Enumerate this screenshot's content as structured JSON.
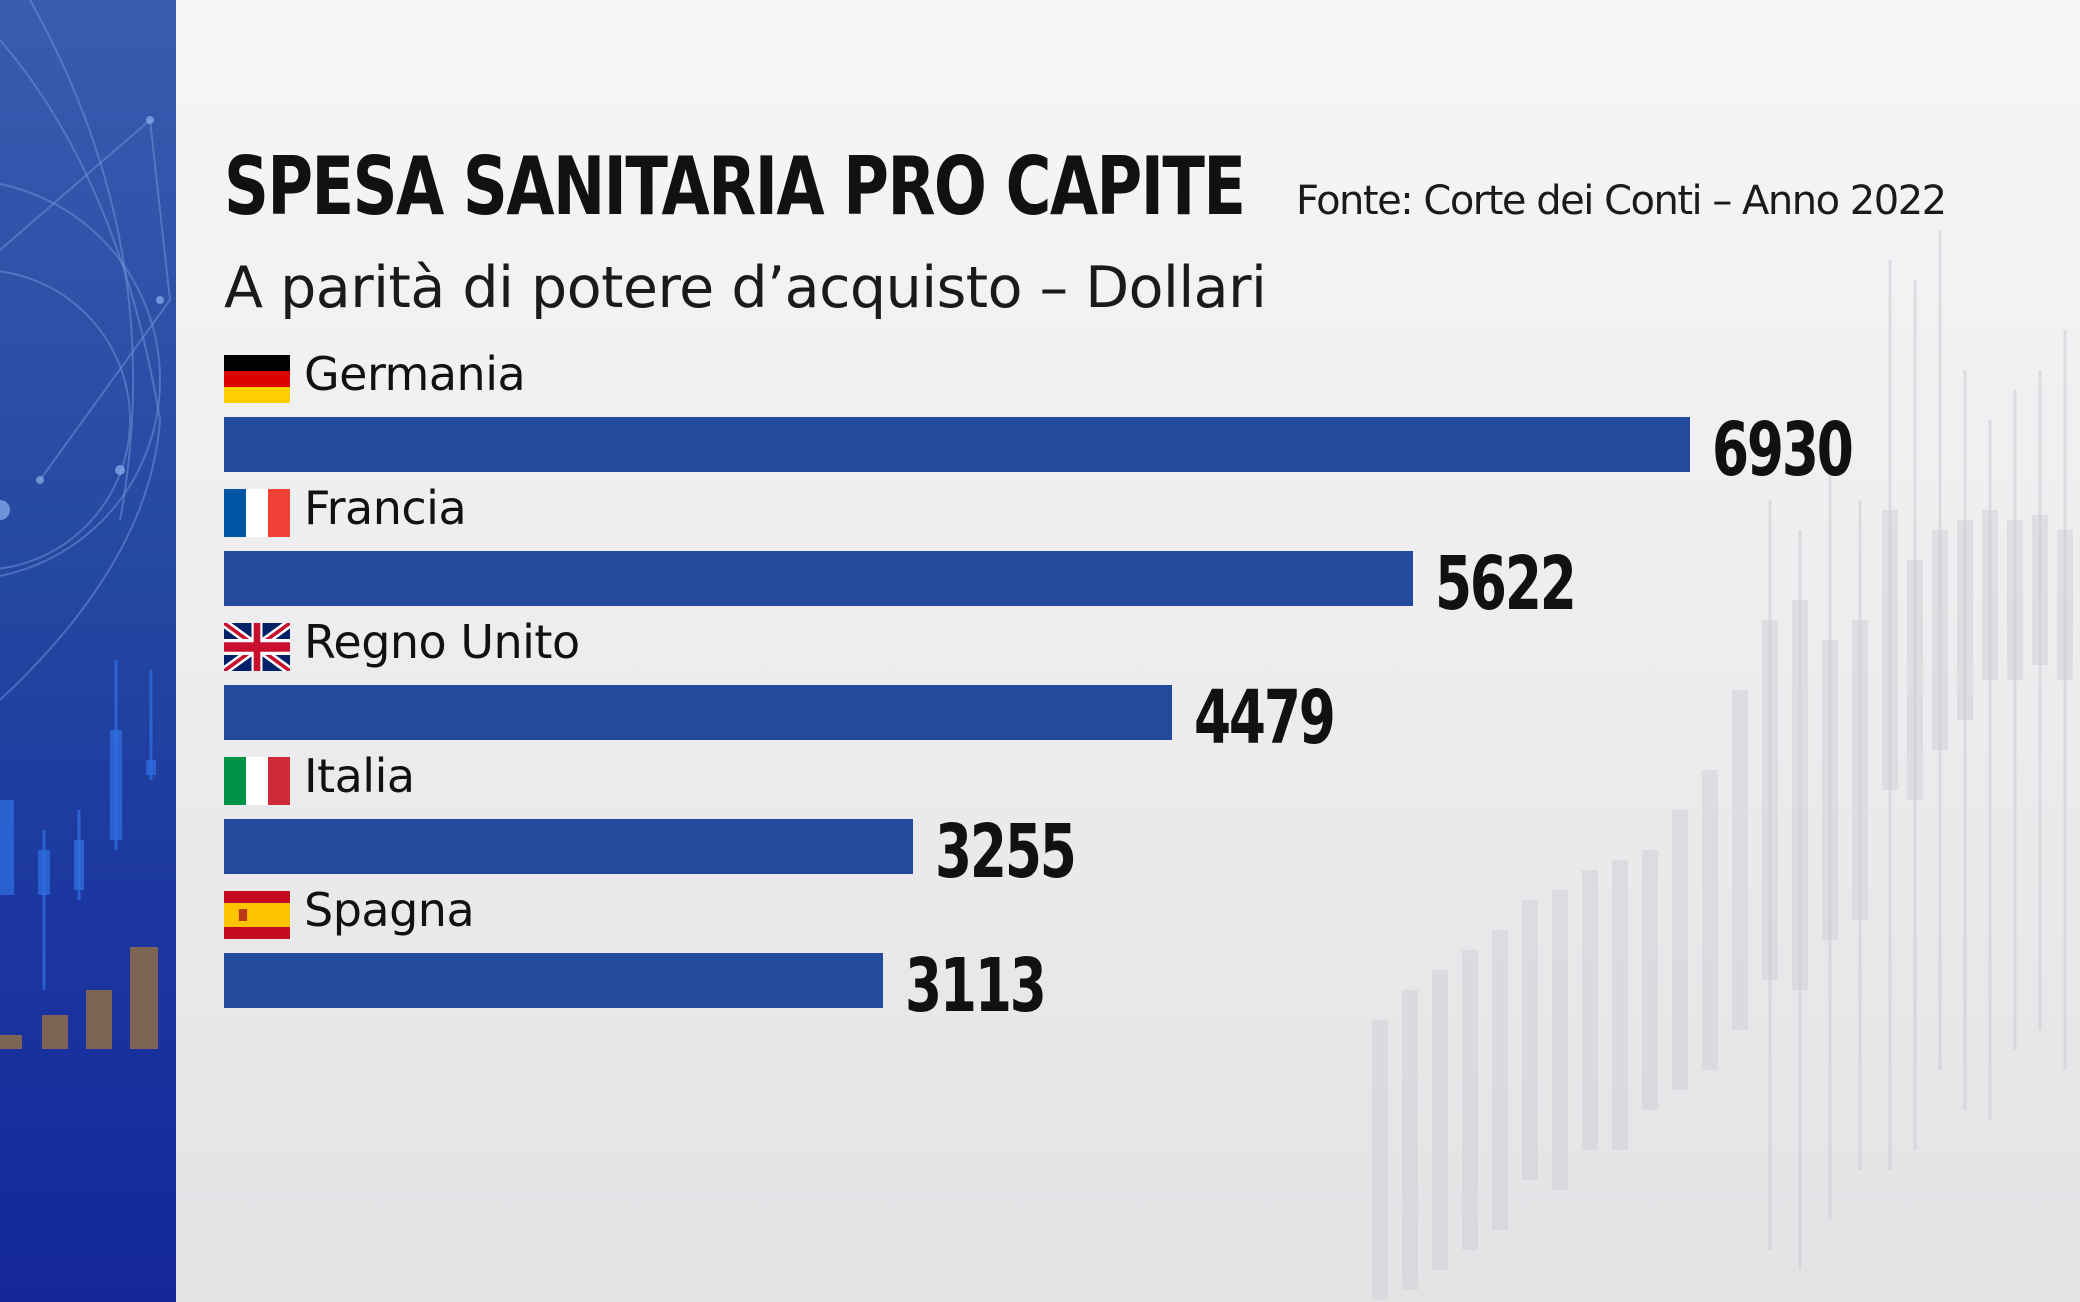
{
  "header": {
    "title": "SPESA SANITARIA PRO CAPITE",
    "subtitle": "A  parità di potere d’acquisto – Dollari",
    "source": "Fonte: Corte dei Conti – Anno 2022"
  },
  "chart_data": {
    "type": "bar",
    "orientation": "horizontal",
    "title": "SPESA SANITARIA PRO CAPITE",
    "subtitle": "A  parità di potere d’acquisto – Dollari",
    "source": "Fonte: Corte dei Conti – Anno 2022",
    "categories": [
      "Germania",
      "Francia",
      "Regno Unito",
      "Italia",
      "Spagna"
    ],
    "values": [
      6930,
      5622,
      4479,
      3255,
      3113
    ],
    "flags": [
      "germany-flag",
      "france-flag",
      "uk-flag",
      "italy-flag",
      "spain-flag"
    ],
    "bar_color": "#234a9c",
    "xlim": [
      0,
      6930
    ],
    "grid": false,
    "legend": "none",
    "xlabel": "",
    "ylabel": ""
  },
  "colors": {
    "side_panel": "#2447a0",
    "bar": "#234a9c",
    "text": "#111111"
  }
}
